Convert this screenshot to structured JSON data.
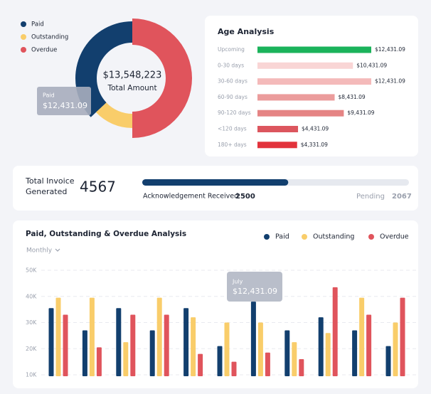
{
  "chart_data": [
    {
      "type": "donut",
      "categories": [
        "Paid",
        "Outstanding",
        "Overdue"
      ],
      "values": [
        37,
        13,
        50
      ],
      "colors": [
        "#123f6e",
        "#f9cd6a",
        "#e0545c"
      ],
      "center_value": "$13,548,223",
      "center_label": "Total Amount",
      "tooltip": {
        "label": "Paid",
        "value": "$12,431.09"
      }
    },
    {
      "type": "hbar",
      "title": "Age Analysis",
      "categories": [
        "Upcoming",
        "0-30 days",
        "30-60 days",
        "60-90 days",
        "90-120 days",
        "<120 days",
        "180+ days"
      ],
      "values": [
        12431.09,
        10431.09,
        12431.09,
        8431.09,
        9431.09,
        4431.09,
        4331.09
      ],
      "value_labels": [
        "$12,431.09",
        "$10,431.09",
        "$12,431.09",
        "$8,431.09",
        "$9,431.09",
        "$4,431.09",
        "$4,331.09"
      ],
      "colors": [
        "#1bb35b",
        "#f9d5d5",
        "#f4baba",
        "#eb9c9c",
        "#e58484",
        "#dc565e",
        "#e2333c"
      ]
    },
    {
      "type": "bar",
      "title": "Paid, Outstanding & Overdue Analysis",
      "period": "Monthly",
      "categories": [
        null,
        null,
        null,
        null,
        null,
        null,
        null,
        null,
        null,
        null,
        null
      ],
      "series": [
        {
          "name": "Paid",
          "color": "#123f6e",
          "values": [
            35500,
            27000,
            35500,
            27000,
            35500,
            21000,
            38000,
            27000,
            32000,
            27000,
            21000
          ]
        },
        {
          "name": "Outstanding",
          "color": "#f9cd6a",
          "values": [
            39500,
            39500,
            22500,
            39500,
            32000,
            30000,
            30000,
            22500,
            26000,
            39500,
            30000
          ]
        },
        {
          "name": "Overdue",
          "color": "#e0545c",
          "values": [
            33000,
            20500,
            33000,
            33000,
            18000,
            15000,
            18500,
            16000,
            43500,
            33000,
            39500
          ]
        }
      ],
      "ylim": [
        10000,
        50000
      ],
      "yticks": [
        {
          "value": 10000,
          "label": "10K"
        },
        {
          "value": 20000,
          "label": "20K"
        },
        {
          "value": 30000,
          "label": "30K"
        },
        {
          "value": 40000,
          "label": "40K"
        },
        {
          "value": 50000,
          "label": "50K"
        }
      ],
      "grid": true,
      "legend": "top-right",
      "tooltip": {
        "label": "July",
        "value": "$12,431.09"
      }
    }
  ],
  "invoice": {
    "label": "Total Invoice Generated",
    "total": 4567,
    "acknowledged_label": "Acknowledgement Received",
    "acknowledged": 2500,
    "pending_label": "Pending",
    "pending": 2067
  }
}
